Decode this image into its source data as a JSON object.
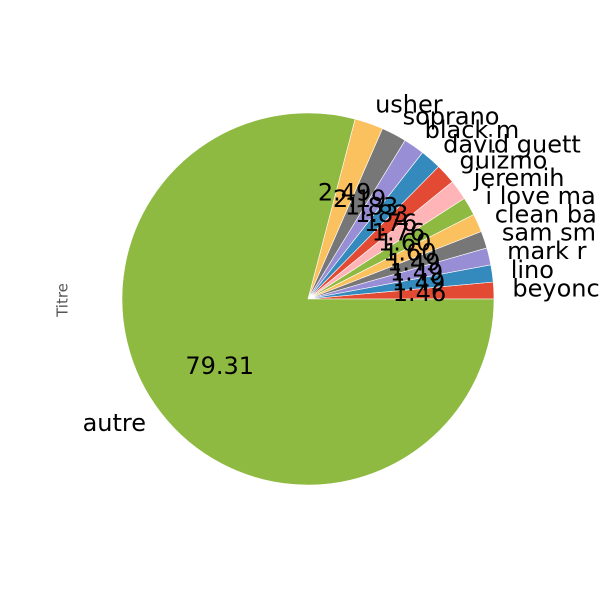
{
  "chart_data": {
    "type": "pie",
    "ylabel": "Titre",
    "categories": [
      "beyonce",
      "lino",
      "mark ronson",
      "sam smith",
      "clean bandit",
      "i love makonnen",
      "jeremih",
      "guizmo",
      "david guetta",
      "black m",
      "soprano",
      "usher",
      "autre"
    ],
    "label_texts": [
      "beyonce",
      "lino",
      "mark r",
      "sam sm",
      "clean ba",
      "i love ma",
      "jeremih",
      "guizmo",
      "david guett",
      "black m",
      "soprano",
      "usher",
      "autre"
    ],
    "values": [
      1.46,
      1.49,
      1.49,
      1.49,
      1.6,
      1.6,
      1.76,
      1.76,
      1.83,
      1.83,
      2.19,
      2.49,
      79.31
    ],
    "value_labels": [
      "1.46",
      "1.49",
      "1.49",
      "1.49",
      "1.60",
      "1.60",
      "1.76",
      "1.76",
      "1.83",
      "1.83",
      "2.19",
      "2.49",
      "79.31"
    ],
    "colors": [
      "#E24A33",
      "#348ABD",
      "#988ED5",
      "#777777",
      "#FBC15E",
      "#8EBA42",
      "#FFB5B8",
      "#E24A33",
      "#348ABD",
      "#988ED5",
      "#777777",
      "#FBC15E",
      "#8EBA42"
    ],
    "start_angle_deg": 0,
    "direction": "counterclockwise",
    "legend": "none"
  }
}
